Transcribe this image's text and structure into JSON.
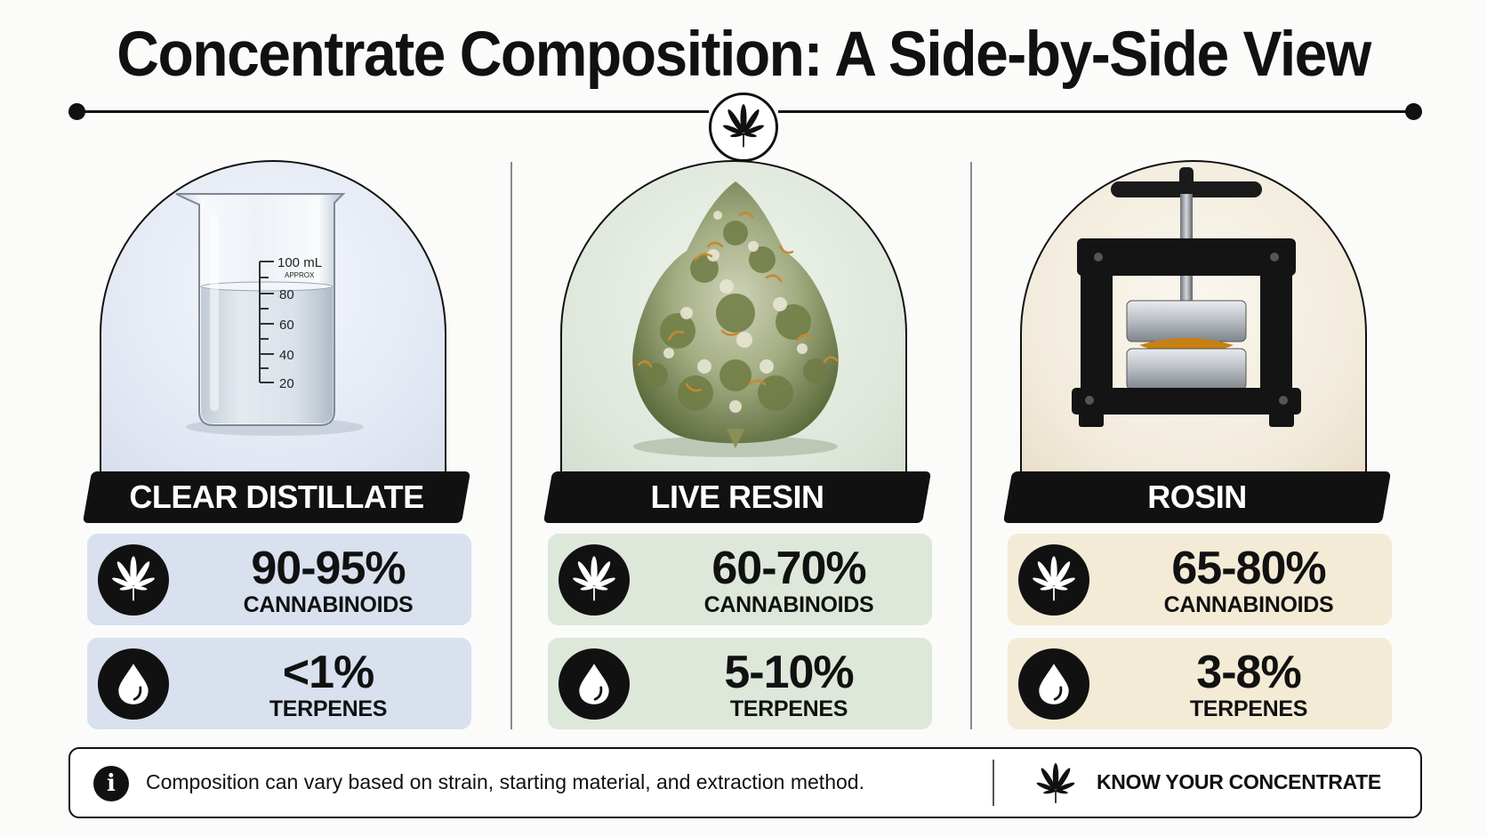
{
  "header": {
    "title": "Concentrate Composition: A Side-by-Side View"
  },
  "columns": [
    {
      "name": "CLEAR DISTILLATE",
      "image": "glass-beaker",
      "bg": "#e6ebf5",
      "card_bg": "#d9e1ef",
      "beaker_marks": [
        "100 mL",
        "APPROX",
        "80",
        "60",
        "40",
        "20"
      ],
      "cannabinoids": {
        "value": "90-95%",
        "label": "CANNABINOIDS",
        "icon": "cannabis-leaf-icon"
      },
      "terpenes": {
        "value": "<1%",
        "label": "TERPENES",
        "icon": "droplet-icon"
      }
    },
    {
      "name": "LIVE RESIN",
      "image": "cannabis-bud",
      "bg": "#e3ebe0",
      "card_bg": "#dde8da",
      "cannabinoids": {
        "value": "60-70%",
        "label": "CANNABINOIDS",
        "icon": "cannabis-leaf-icon"
      },
      "terpenes": {
        "value": "5-10%",
        "label": "TERPENES",
        "icon": "droplet-icon"
      }
    },
    {
      "name": "ROSIN",
      "image": "rosin-press",
      "bg": "#f3eddf",
      "card_bg": "#f4ebd6",
      "cannabinoids": {
        "value": "65-80%",
        "label": "CANNABINOIDS",
        "icon": "cannabis-leaf-icon"
      },
      "terpenes": {
        "value": "3-8%",
        "label": "TERPENES",
        "icon": "droplet-icon"
      }
    }
  ],
  "footer": {
    "note": "Composition can vary based on strain, starting material, and extraction method.",
    "tagline": "KNOW YOUR CONCENTRATE",
    "icons": [
      "info-icon",
      "cannabis-leaf-icon"
    ]
  }
}
